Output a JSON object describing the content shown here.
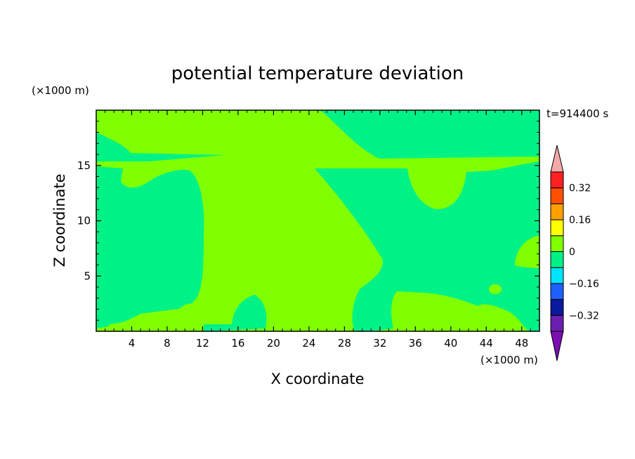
{
  "chart_data": {
    "type": "heatmap",
    "subtype": "filled-contour",
    "title": "potential temperature deviation",
    "xlabel": "X coordinate",
    "ylabel": "Z coordinate",
    "x_unit": "(×1000 m)",
    "z_unit": "(×1000 m)",
    "time_label": "t=914400 s",
    "xlim": [
      0,
      50
    ],
    "ylim": [
      0,
      20
    ],
    "x_ticks": [
      4,
      8,
      12,
      16,
      20,
      24,
      28,
      32,
      36,
      40,
      44,
      48
    ],
    "x_tick_labels": [
      "4",
      "8",
      "12",
      "16",
      "20",
      "24",
      "28",
      "32",
      "36",
      "40",
      "44",
      "48"
    ],
    "y_ticks": [
      5,
      10,
      15
    ],
    "y_tick_labels": [
      "5",
      "10",
      "15"
    ],
    "grid": false,
    "colorbar": {
      "position": "right",
      "levels": [
        -0.4,
        -0.32,
        -0.24,
        -0.16,
        -0.08,
        0,
        0.08,
        0.16,
        0.24,
        0.32,
        0.4
      ],
      "tick_values": [
        -0.32,
        -0.16,
        0,
        0.16,
        0.32
      ],
      "tick_labels": [
        "−0.32",
        "−0.16",
        "0",
        "0.16",
        "0.32"
      ],
      "band_colors": [
        "#6a1fb0",
        "#0a1a9e",
        "#1e60ff",
        "#00e4ff",
        "#00f287",
        "#80ff00",
        "#ffff00",
        "#ffa000",
        "#ff5000",
        "#ff2020"
      ],
      "extend_low_color": "#7a10b0",
      "extend_high_color": "#f4a8a8"
    },
    "region_colors": {
      "negative_small": "#00f287",
      "positive_small": "#80ff00"
    },
    "regions": [
      {
        "value_range": [
          0,
          0.08
        ],
        "x": [
          0,
          50
        ],
        "z": [
          0,
          20
        ],
        "note": "background"
      },
      {
        "value_range": [
          -0.08,
          0
        ],
        "x": [
          0,
          15
        ],
        "z": [
          15,
          18.5
        ]
      },
      {
        "value_range": [
          -0.08,
          0
        ],
        "x": [
          23,
          50
        ],
        "z": [
          15.5,
          20
        ]
      },
      {
        "value_range": [
          -0.08,
          0
        ],
        "x": [
          0,
          12
        ],
        "z": [
          2,
          14.5
        ]
      },
      {
        "value_range": [
          -0.08,
          0
        ],
        "x": [
          25,
          50
        ],
        "z": [
          0.5,
          15
        ]
      },
      {
        "value_range": [
          -0.08,
          0
        ],
        "x": [
          15,
          20
        ],
        "z": [
          0,
          3
        ]
      }
    ]
  }
}
